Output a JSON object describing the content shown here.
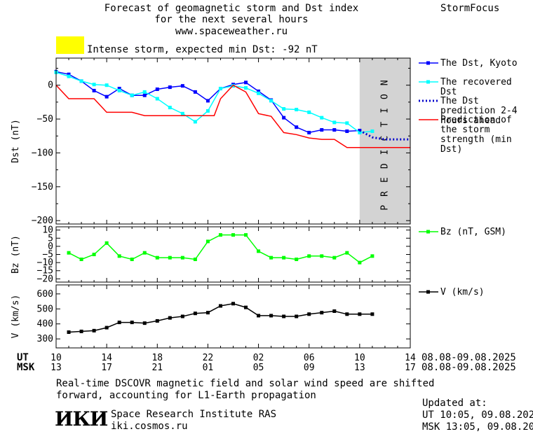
{
  "header": {
    "title_line1": "Forecast of geomagnetic storm and Dst index",
    "title_line2": "for the next several hours",
    "website": "www.spaceweather.ru",
    "brand": "StormFocus",
    "alert_text": "Intense storm, expected min Dst: -92 nT",
    "alert_color": "#ffff00"
  },
  "time_axis": {
    "ut_label": "UT",
    "msk_label": "MSK",
    "ut_ticks": [
      "10",
      "14",
      "18",
      "22",
      "02",
      "06",
      "10",
      "14"
    ],
    "msk_ticks": [
      "13",
      "17",
      "21",
      "01",
      "05",
      "09",
      "13",
      "17"
    ],
    "ut_date_range": "08.08-09.08.2025",
    "msk_date_range": "08.08-09.08.2025",
    "prediction_label": "PREDICTION"
  },
  "footer": {
    "note_line1": "Real-time DSCOVR magnetic field and solar wind speed are shifted",
    "note_line2": "forward, accounting for L1-Earth propagation",
    "updated_label": "Updated at:",
    "updated_ut": "UT   10:05, 09.08.2025",
    "updated_msk": "MSK 13:05, 09.08.2025",
    "org_logo": "ИКИ",
    "org_name": "Space Research Institute RAS",
    "org_site": "iki.cosmos.ru"
  },
  "chart_data": [
    {
      "type": "line",
      "ylabel": "Dst (nT)",
      "xlabel": "UT hours",
      "xlim": [
        10,
        38
      ],
      "ylim": [
        -205,
        40
      ],
      "y_ticks": [
        0,
        -50,
        -100,
        -150,
        -200
      ],
      "prediction_region": [
        34,
        38
      ],
      "legend_position": "right",
      "series": [
        {
          "name": "The Dst, Kyoto",
          "color": "#0000ff",
          "style": "line-square",
          "x": [
            10,
            11,
            12,
            13,
            14,
            15,
            16,
            17,
            18,
            19,
            20,
            21,
            22,
            23,
            24,
            25,
            26,
            27,
            28,
            29,
            30,
            31,
            32,
            33,
            34
          ],
          "y": [
            20,
            16,
            6,
            -8,
            -17,
            -5,
            -15,
            -15,
            -6,
            -3,
            -1,
            -10,
            -23,
            -5,
            1,
            4,
            -9,
            -22,
            -48,
            -62,
            -70,
            -66,
            -66,
            -68,
            -67
          ]
        },
        {
          "name": "The recovered Dst",
          "color": "#00ffff",
          "style": "line-square",
          "x": [
            10,
            11,
            12,
            13,
            14,
            15,
            16,
            17,
            18,
            19,
            20,
            21,
            22,
            23,
            24,
            25,
            26,
            27,
            28,
            29,
            30,
            31,
            32,
            33,
            34,
            35
          ],
          "y": [
            19,
            13,
            6,
            1,
            0,
            -8,
            -15,
            -10,
            -20,
            -33,
            -42,
            -54,
            -38,
            -5,
            -1,
            -4,
            -12,
            -23,
            -35,
            -36,
            -40,
            -48,
            -55,
            -56,
            -70,
            -68
          ]
        },
        {
          "name": "The Dst prediction 2-4 hours ahead",
          "color": "#0000cc",
          "style": "dotted",
          "x": [
            34,
            34.5,
            35,
            36,
            37,
            38
          ],
          "y": [
            -67,
            -72,
            -77,
            -80,
            -80,
            -80
          ]
        },
        {
          "name": "Prediction of the storm strength (min Dst)",
          "color": "#ff0000",
          "style": "line",
          "x": [
            10,
            11,
            13,
            14,
            16,
            17,
            22.5,
            23,
            24,
            25,
            26,
            27,
            28,
            29,
            30,
            31,
            32,
            33,
            34,
            38
          ],
          "y": [
            0,
            -20,
            -20,
            -40,
            -40,
            -45,
            -45,
            -20,
            0,
            -10,
            -42,
            -46,
            -70,
            -73,
            -78,
            -80,
            -80,
            -92,
            -92,
            -92
          ]
        }
      ]
    },
    {
      "type": "line",
      "ylabel": "Bz (nT)",
      "xlim": [
        10,
        38
      ],
      "ylim": [
        -22,
        12
      ],
      "y_ticks": [
        10,
        5,
        0,
        -5,
        -10,
        -15,
        -20
      ],
      "legend_position": "right",
      "series": [
        {
          "name": "Bz (nT, GSM)",
          "color": "#00ff00",
          "style": "line-square",
          "x": [
            11,
            12,
            13,
            14,
            15,
            16,
            17,
            18,
            19,
            20,
            21,
            22,
            23,
            24,
            25,
            26,
            27,
            28,
            29,
            30,
            31,
            32,
            33,
            34,
            35
          ],
          "y": [
            -4,
            -8,
            -5,
            2,
            -6,
            -8,
            -4,
            -7,
            -7,
            -7,
            -8,
            3,
            7,
            7,
            7,
            -3,
            -7,
            -7,
            -8,
            -6,
            -6,
            -7,
            -4,
            -10,
            -6
          ]
        }
      ]
    },
    {
      "type": "line",
      "ylabel": "V (km/s)",
      "xlim": [
        10,
        38
      ],
      "ylim": [
        240,
        660
      ],
      "y_ticks": [
        300,
        400,
        500,
        600
      ],
      "legend_position": "right",
      "series": [
        {
          "name": "V (km/s)",
          "color": "#000000",
          "style": "line-square",
          "x": [
            11,
            12,
            13,
            14,
            15,
            16,
            17,
            18,
            19,
            20,
            21,
            22,
            23,
            24,
            25,
            26,
            27,
            28,
            29,
            30,
            31,
            32,
            33,
            34,
            35
          ],
          "y": [
            345,
            350,
            355,
            375,
            410,
            410,
            405,
            420,
            440,
            450,
            470,
            475,
            520,
            535,
            510,
            455,
            455,
            450,
            450,
            465,
            475,
            485,
            465,
            465,
            465
          ]
        }
      ]
    }
  ]
}
